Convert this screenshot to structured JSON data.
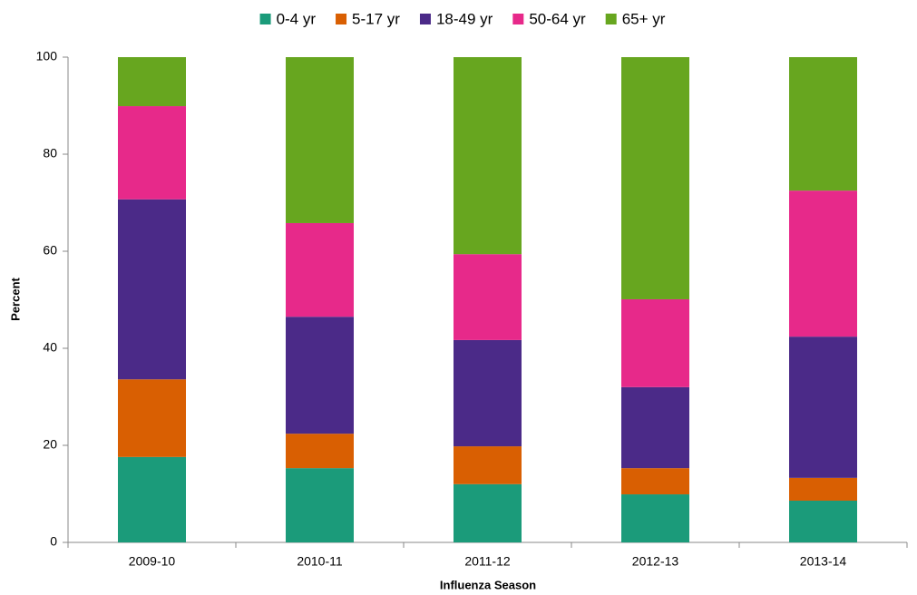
{
  "chart_data": {
    "type": "stacked_bar",
    "x_label": "Influenza Season",
    "y_label": "Percent",
    "categories": [
      "2009-10",
      "2010-11",
      "2011-12",
      "2012-13",
      "2013-14"
    ],
    "series": [
      {
        "name": "0-4 yr",
        "color": "#1b9b7a",
        "values": [
          17.6,
          15.3,
          12.0,
          9.9,
          8.6
        ]
      },
      {
        "name": "5-17 yr",
        "color": "#d95f02",
        "values": [
          16.0,
          7.1,
          7.8,
          5.4,
          4.7
        ]
      },
      {
        "name": "18-49 yr",
        "color": "#4b2a88",
        "values": [
          37.1,
          24.1,
          21.9,
          16.7,
          29.1
        ]
      },
      {
        "name": "50-64 yr",
        "color": "#e7298a",
        "values": [
          19.2,
          19.3,
          17.7,
          18.1,
          30.1
        ]
      },
      {
        "name": "65+ yr",
        "color": "#67a61f",
        "values": [
          10.1,
          34.2,
          40.6,
          49.9,
          27.5
        ]
      }
    ],
    "ylim": [
      0,
      100
    ],
    "yticks": [
      0,
      20,
      40,
      60,
      80,
      100
    ],
    "grid": false,
    "legend": "top"
  }
}
